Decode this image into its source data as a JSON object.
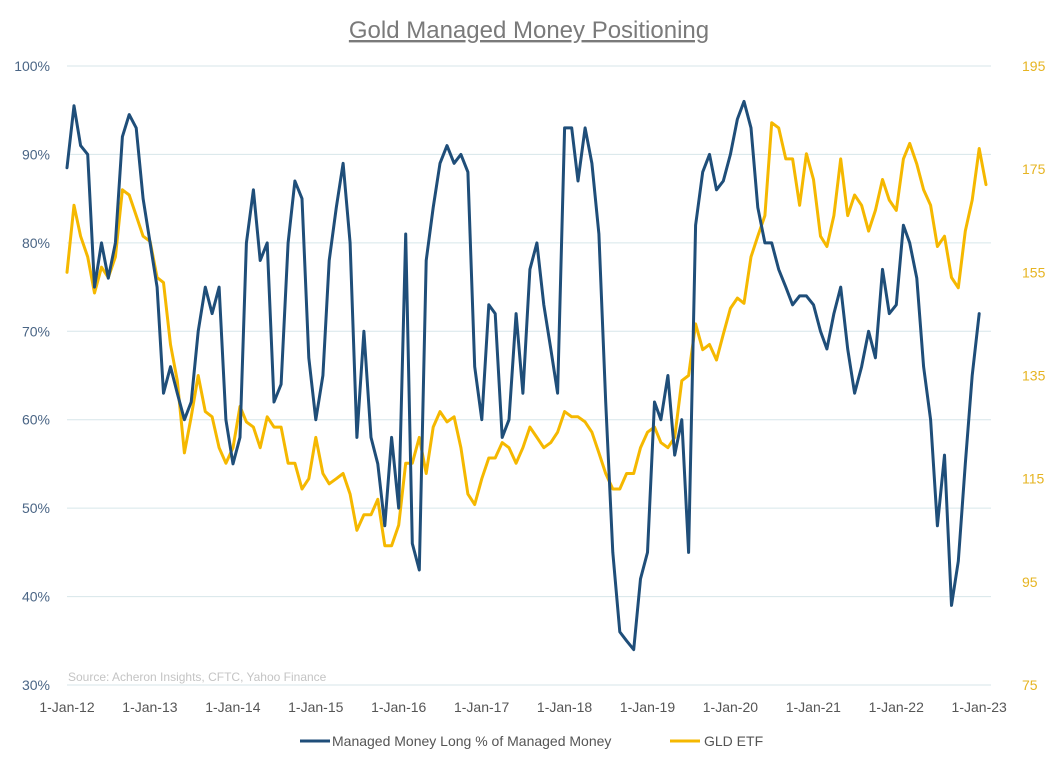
{
  "chart_data": {
    "type": "line",
    "title": "Gold Managed Money Positioning",
    "source": "Source: Acheron Insights, CFTC, Yahoo Finance",
    "x_ticks": [
      "1-Jan-12",
      "1-Jan-13",
      "1-Jan-14",
      "1-Jan-15",
      "1-Jan-16",
      "1-Jan-17",
      "1-Jan-18",
      "1-Jan-19",
      "1-Jan-20",
      "1-Jan-21",
      "1-Jan-22",
      "1-Jan-23"
    ],
    "xlim": [
      "2012-01-01",
      "2023-01-31"
    ],
    "y_left": {
      "ticks": [
        "30%",
        "40%",
        "50%",
        "60%",
        "70%",
        "80%",
        "90%",
        "100%"
      ],
      "ylim": [
        30,
        100
      ],
      "unit": "%"
    },
    "y_right": {
      "ticks": [
        "75",
        "95",
        "115",
        "135",
        "155",
        "175",
        "195"
      ],
      "ylim": [
        75,
        195
      ]
    },
    "grid": "horizontal",
    "legend_position": "bottom",
    "series": [
      {
        "name": "Managed Money Long % of Managed Money",
        "axis": "left",
        "color": "#1f4e79",
        "points": [
          [
            "2012-01-01",
            88.5
          ],
          [
            "2012-02-01",
            95.5
          ],
          [
            "2012-03-01",
            91
          ],
          [
            "2012-04-01",
            90
          ],
          [
            "2012-05-01",
            75
          ],
          [
            "2012-06-01",
            80
          ],
          [
            "2012-07-01",
            76
          ],
          [
            "2012-08-01",
            80
          ],
          [
            "2012-09-01",
            92
          ],
          [
            "2012-10-01",
            94.5
          ],
          [
            "2012-11-01",
            93
          ],
          [
            "2012-12-01",
            85
          ],
          [
            "2013-01-01",
            80
          ],
          [
            "2013-02-01",
            75
          ],
          [
            "2013-03-01",
            63
          ],
          [
            "2013-04-01",
            66
          ],
          [
            "2013-05-01",
            63
          ],
          [
            "2013-06-01",
            60
          ],
          [
            "2013-07-01",
            62
          ],
          [
            "2013-08-01",
            70
          ],
          [
            "2013-09-01",
            75
          ],
          [
            "2013-10-01",
            72
          ],
          [
            "2013-11-01",
            75
          ],
          [
            "2013-12-01",
            60
          ],
          [
            "2014-01-01",
            55
          ],
          [
            "2014-02-01",
            58
          ],
          [
            "2014-03-01",
            80
          ],
          [
            "2014-04-01",
            86
          ],
          [
            "2014-05-01",
            78
          ],
          [
            "2014-06-01",
            80
          ],
          [
            "2014-07-01",
            62
          ],
          [
            "2014-08-01",
            64
          ],
          [
            "2014-09-01",
            80
          ],
          [
            "2014-10-01",
            87
          ],
          [
            "2014-11-01",
            85
          ],
          [
            "2014-12-01",
            67
          ],
          [
            "2015-01-01",
            60
          ],
          [
            "2015-02-01",
            65
          ],
          [
            "2015-03-01",
            78
          ],
          [
            "2015-04-01",
            84
          ],
          [
            "2015-05-01",
            89
          ],
          [
            "2015-06-01",
            80
          ],
          [
            "2015-07-01",
            58
          ],
          [
            "2015-08-01",
            70
          ],
          [
            "2015-09-01",
            58
          ],
          [
            "2015-10-01",
            55
          ],
          [
            "2015-11-01",
            48
          ],
          [
            "2015-12-01",
            58
          ],
          [
            "2016-01-01",
            50
          ],
          [
            "2016-02-01",
            81
          ],
          [
            "2016-03-01",
            46
          ],
          [
            "2016-04-01",
            43
          ],
          [
            "2016-05-01",
            78
          ],
          [
            "2016-06-01",
            84
          ],
          [
            "2016-07-01",
            89
          ],
          [
            "2016-08-01",
            91
          ],
          [
            "2016-09-01",
            89
          ],
          [
            "2016-10-01",
            90
          ],
          [
            "2016-11-01",
            88
          ],
          [
            "2016-12-01",
            66
          ],
          [
            "2017-01-01",
            60
          ],
          [
            "2017-02-01",
            73
          ],
          [
            "2017-03-01",
            72
          ],
          [
            "2017-04-01",
            58
          ],
          [
            "2017-05-01",
            60
          ],
          [
            "2017-06-01",
            72
          ],
          [
            "2017-07-01",
            63
          ],
          [
            "2017-08-01",
            77
          ],
          [
            "2017-09-01",
            80
          ],
          [
            "2017-10-01",
            73
          ],
          [
            "2017-11-01",
            68
          ],
          [
            "2017-12-01",
            63
          ],
          [
            "2018-01-01",
            93
          ],
          [
            "2018-02-01",
            93
          ],
          [
            "2018-03-01",
            87
          ],
          [
            "2018-04-01",
            93
          ],
          [
            "2018-05-01",
            89
          ],
          [
            "2018-06-01",
            81
          ],
          [
            "2018-07-01",
            62
          ],
          [
            "2018-08-01",
            45
          ],
          [
            "2018-09-01",
            36
          ],
          [
            "2018-10-01",
            35
          ],
          [
            "2018-11-01",
            34
          ],
          [
            "2018-12-01",
            42
          ],
          [
            "2019-01-01",
            45
          ],
          [
            "2019-02-01",
            62
          ],
          [
            "2019-03-01",
            60
          ],
          [
            "2019-04-01",
            65
          ],
          [
            "2019-05-01",
            56
          ],
          [
            "2019-06-01",
            60
          ],
          [
            "2019-07-01",
            45
          ],
          [
            "2019-08-01",
            82
          ],
          [
            "2019-09-01",
            88
          ],
          [
            "2019-10-01",
            90
          ],
          [
            "2019-11-01",
            86
          ],
          [
            "2019-12-01",
            87
          ],
          [
            "2020-01-01",
            90
          ],
          [
            "2020-02-01",
            94
          ],
          [
            "2020-03-01",
            96
          ],
          [
            "2020-04-01",
            93
          ],
          [
            "2020-05-01",
            84
          ],
          [
            "2020-06-01",
            80
          ],
          [
            "2020-07-01",
            80
          ],
          [
            "2020-08-01",
            77
          ],
          [
            "2020-09-01",
            75
          ],
          [
            "2020-10-01",
            73
          ],
          [
            "2020-11-01",
            74
          ],
          [
            "2020-12-01",
            74
          ],
          [
            "2021-01-01",
            73
          ],
          [
            "2021-02-01",
            70
          ],
          [
            "2021-03-01",
            68
          ],
          [
            "2021-04-01",
            72
          ],
          [
            "2021-05-01",
            75
          ],
          [
            "2021-06-01",
            68
          ],
          [
            "2021-07-01",
            63
          ],
          [
            "2021-08-01",
            66
          ],
          [
            "2021-09-01",
            70
          ],
          [
            "2021-10-01",
            67
          ],
          [
            "2021-11-01",
            77
          ],
          [
            "2021-12-01",
            72
          ],
          [
            "2022-01-01",
            73
          ],
          [
            "2022-02-01",
            82
          ],
          [
            "2022-03-01",
            80
          ],
          [
            "2022-04-01",
            76
          ],
          [
            "2022-05-01",
            66
          ],
          [
            "2022-06-01",
            60
          ],
          [
            "2022-07-01",
            48
          ],
          [
            "2022-08-01",
            56
          ],
          [
            "2022-09-01",
            39
          ],
          [
            "2022-10-01",
            44
          ],
          [
            "2022-11-01",
            55
          ],
          [
            "2022-12-01",
            65
          ],
          [
            "2023-01-01",
            72
          ]
        ]
      },
      {
        "name": "GLD ETF",
        "axis": "right",
        "color": "#f5b800",
        "points": [
          [
            "2012-01-01",
            155
          ],
          [
            "2012-02-01",
            168
          ],
          [
            "2012-03-01",
            162
          ],
          [
            "2012-04-01",
            158
          ],
          [
            "2012-05-01",
            151
          ],
          [
            "2012-06-01",
            156
          ],
          [
            "2012-07-01",
            154
          ],
          [
            "2012-08-01",
            158
          ],
          [
            "2012-09-01",
            171
          ],
          [
            "2012-10-01",
            170
          ],
          [
            "2012-11-01",
            166
          ],
          [
            "2012-12-01",
            162
          ],
          [
            "2013-01-01",
            161
          ],
          [
            "2013-02-01",
            154
          ],
          [
            "2013-03-01",
            153
          ],
          [
            "2013-04-01",
            141
          ],
          [
            "2013-05-01",
            134
          ],
          [
            "2013-06-01",
            120
          ],
          [
            "2013-07-01",
            127
          ],
          [
            "2013-08-01",
            135
          ],
          [
            "2013-09-01",
            128
          ],
          [
            "2013-10-01",
            127
          ],
          [
            "2013-11-01",
            121
          ],
          [
            "2013-12-01",
            118
          ],
          [
            "2014-01-01",
            121
          ],
          [
            "2014-02-01",
            129
          ],
          [
            "2014-03-01",
            126
          ],
          [
            "2014-04-01",
            125
          ],
          [
            "2014-05-01",
            121
          ],
          [
            "2014-06-01",
            127
          ],
          [
            "2014-07-01",
            125
          ],
          [
            "2014-08-01",
            125
          ],
          [
            "2014-09-01",
            118
          ],
          [
            "2014-10-01",
            118
          ],
          [
            "2014-11-01",
            113
          ],
          [
            "2014-12-01",
            115
          ],
          [
            "2015-01-01",
            123
          ],
          [
            "2015-02-01",
            116
          ],
          [
            "2015-03-01",
            114
          ],
          [
            "2015-04-01",
            115
          ],
          [
            "2015-05-01",
            116
          ],
          [
            "2015-06-01",
            112
          ],
          [
            "2015-07-01",
            105
          ],
          [
            "2015-08-01",
            108
          ],
          [
            "2015-09-01",
            108
          ],
          [
            "2015-10-01",
            111
          ],
          [
            "2015-11-01",
            102
          ],
          [
            "2015-12-01",
            102
          ],
          [
            "2016-01-01",
            106
          ],
          [
            "2016-02-01",
            118
          ],
          [
            "2016-03-01",
            118
          ],
          [
            "2016-04-01",
            123
          ],
          [
            "2016-05-01",
            116
          ],
          [
            "2016-06-01",
            125
          ],
          [
            "2016-07-01",
            128
          ],
          [
            "2016-08-01",
            126
          ],
          [
            "2016-09-01",
            127
          ],
          [
            "2016-10-01",
            121
          ],
          [
            "2016-11-01",
            112
          ],
          [
            "2016-12-01",
            110
          ],
          [
            "2017-01-01",
            115
          ],
          [
            "2017-02-01",
            119
          ],
          [
            "2017-03-01",
            119
          ],
          [
            "2017-04-01",
            122
          ],
          [
            "2017-05-01",
            121
          ],
          [
            "2017-06-01",
            118
          ],
          [
            "2017-07-01",
            121
          ],
          [
            "2017-08-01",
            125
          ],
          [
            "2017-09-01",
            123
          ],
          [
            "2017-10-01",
            121
          ],
          [
            "2017-11-01",
            122
          ],
          [
            "2017-12-01",
            124
          ],
          [
            "2018-01-01",
            128
          ],
          [
            "2018-02-01",
            127
          ],
          [
            "2018-03-01",
            127
          ],
          [
            "2018-04-01",
            126
          ],
          [
            "2018-05-01",
            124
          ],
          [
            "2018-06-01",
            120
          ],
          [
            "2018-07-01",
            116
          ],
          [
            "2018-08-01",
            113
          ],
          [
            "2018-09-01",
            113
          ],
          [
            "2018-10-01",
            116
          ],
          [
            "2018-11-01",
            116
          ],
          [
            "2018-12-01",
            121
          ],
          [
            "2019-01-01",
            124
          ],
          [
            "2019-02-01",
            125
          ],
          [
            "2019-03-01",
            122
          ],
          [
            "2019-04-01",
            121
          ],
          [
            "2019-05-01",
            123
          ],
          [
            "2019-06-01",
            134
          ],
          [
            "2019-07-01",
            135
          ],
          [
            "2019-08-01",
            145
          ],
          [
            "2019-09-01",
            140
          ],
          [
            "2019-10-01",
            141
          ],
          [
            "2019-11-01",
            138
          ],
          [
            "2019-12-01",
            143
          ],
          [
            "2020-01-01",
            148
          ],
          [
            "2020-02-01",
            150
          ],
          [
            "2020-03-01",
            149
          ],
          [
            "2020-04-01",
            158
          ],
          [
            "2020-05-01",
            162
          ],
          [
            "2020-06-01",
            166
          ],
          [
            "2020-07-01",
            184
          ],
          [
            "2020-08-01",
            183
          ],
          [
            "2020-09-01",
            177
          ],
          [
            "2020-10-01",
            177
          ],
          [
            "2020-11-01",
            168
          ],
          [
            "2020-12-01",
            178
          ],
          [
            "2021-01-01",
            173
          ],
          [
            "2021-02-01",
            162
          ],
          [
            "2021-03-01",
            160
          ],
          [
            "2021-04-01",
            166
          ],
          [
            "2021-05-01",
            177
          ],
          [
            "2021-06-01",
            166
          ],
          [
            "2021-07-01",
            170
          ],
          [
            "2021-08-01",
            168
          ],
          [
            "2021-09-01",
            163
          ],
          [
            "2021-10-01",
            167
          ],
          [
            "2021-11-01",
            173
          ],
          [
            "2021-12-01",
            169
          ],
          [
            "2022-01-01",
            167
          ],
          [
            "2022-02-01",
            177
          ],
          [
            "2022-03-01",
            180
          ],
          [
            "2022-04-01",
            176
          ],
          [
            "2022-05-01",
            171
          ],
          [
            "2022-06-01",
            168
          ],
          [
            "2022-07-01",
            160
          ],
          [
            "2022-08-01",
            162
          ],
          [
            "2022-09-01",
            154
          ],
          [
            "2022-10-01",
            152
          ],
          [
            "2022-11-01",
            163
          ],
          [
            "2022-12-01",
            169
          ],
          [
            "2023-01-01",
            179
          ],
          [
            "2023-01-31",
            172
          ]
        ]
      }
    ]
  },
  "colors": {
    "left_axis": "#4a6585",
    "right_axis": "#e6b422",
    "grid": "#d7e6ea"
  }
}
